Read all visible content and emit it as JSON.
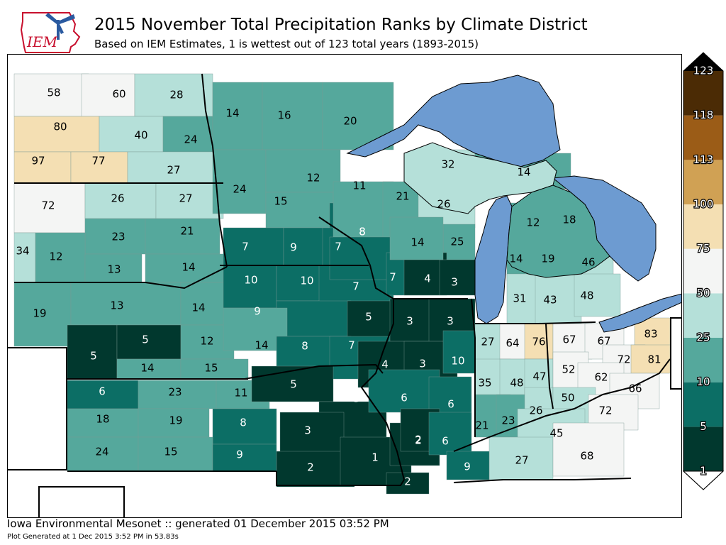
{
  "header": {
    "logo_text": "IEM",
    "title": "2015 November Total Precipitation Ranks by Climate District",
    "subtitle": "Based on IEM Estimates, 1 is wettest out of 123 total years (1893-2015)"
  },
  "footer": {
    "generated": "Iowa Environmental Mesonet :: generated 01 December 2015 03:52 PM",
    "plot_time": "Plot Generated at 1 Dec 2015 3:52 PM in 53.83s"
  },
  "colors": {
    "water": "#6d9bd1",
    "r1_5": "#01382e",
    "r5_10": "#0c6e65",
    "r10_25": "#55a89c",
    "r25_50": "#b5e0d9",
    "r50_75": "#f4f5f4",
    "r75_100": "#f4dfb3",
    "r100_113": "#d0a154",
    "r113_118": "#9b5c17",
    "r118_123": "#4b2b05"
  },
  "colorbar": {
    "levels": [
      "1",
      "5",
      "10",
      "25",
      "50",
      "75",
      "100",
      "113",
      "118",
      "123"
    ]
  },
  "districts": [
    {
      "rank": "58"
    },
    {
      "rank": "60"
    },
    {
      "rank": "28"
    },
    {
      "rank": "80"
    },
    {
      "rank": "40"
    },
    {
      "rank": "24"
    },
    {
      "rank": "97"
    },
    {
      "rank": "77"
    },
    {
      "rank": "27"
    },
    {
      "rank": "72"
    },
    {
      "rank": "26"
    },
    {
      "rank": "27"
    },
    {
      "rank": "23"
    },
    {
      "rank": "21"
    },
    {
      "rank": "34"
    },
    {
      "rank": "12"
    },
    {
      "rank": "13"
    },
    {
      "rank": "14"
    },
    {
      "rank": "19"
    },
    {
      "rank": "13"
    },
    {
      "rank": "14"
    },
    {
      "rank": "5"
    },
    {
      "rank": "5"
    },
    {
      "rank": "12"
    },
    {
      "rank": "14"
    },
    {
      "rank": "15"
    },
    {
      "rank": "6"
    },
    {
      "rank": "23"
    },
    {
      "rank": "11"
    },
    {
      "rank": "18"
    },
    {
      "rank": "19"
    },
    {
      "rank": "8"
    },
    {
      "rank": "24"
    },
    {
      "rank": "15"
    },
    {
      "rank": "9"
    },
    {
      "rank": "14"
    },
    {
      "rank": "16"
    },
    {
      "rank": "20"
    },
    {
      "rank": "24"
    },
    {
      "rank": "12"
    },
    {
      "rank": "15"
    },
    {
      "rank": "8"
    },
    {
      "rank": "7"
    },
    {
      "rank": "9"
    },
    {
      "rank": "7"
    },
    {
      "rank": "10"
    },
    {
      "rank": "10"
    },
    {
      "rank": "7"
    },
    {
      "rank": "9"
    },
    {
      "rank": "5"
    },
    {
      "rank": "14"
    },
    {
      "rank": "8"
    },
    {
      "rank": "7"
    },
    {
      "rank": "5"
    },
    {
      "rank": "3"
    },
    {
      "rank": "3"
    },
    {
      "rank": "2"
    },
    {
      "rank": "1"
    },
    {
      "rank": "2"
    },
    {
      "rank": "2"
    },
    {
      "rank": "11"
    },
    {
      "rank": "21"
    },
    {
      "rank": "8"
    },
    {
      "rank": "32"
    },
    {
      "rank": "26"
    },
    {
      "rank": "14"
    },
    {
      "rank": "25"
    },
    {
      "rank": "7"
    },
    {
      "rank": "4"
    },
    {
      "rank": "3"
    },
    {
      "rank": "14"
    },
    {
      "rank": "12"
    },
    {
      "rank": "18"
    },
    {
      "rank": "14"
    },
    {
      "rank": "19"
    },
    {
      "rank": "46"
    },
    {
      "rank": "31"
    },
    {
      "rank": "43"
    },
    {
      "rank": "48"
    },
    {
      "rank": "3"
    },
    {
      "rank": "3"
    },
    {
      "rank": "4"
    },
    {
      "rank": "3"
    },
    {
      "rank": "10"
    },
    {
      "rank": "6"
    },
    {
      "rank": "6"
    },
    {
      "rank": "2"
    },
    {
      "rank": "6"
    },
    {
      "rank": "27"
    },
    {
      "rank": "64"
    },
    {
      "rank": "76"
    },
    {
      "rank": "35"
    },
    {
      "rank": "48"
    },
    {
      "rank": "47"
    },
    {
      "rank": "21"
    },
    {
      "rank": "23"
    },
    {
      "rank": "26"
    },
    {
      "rank": "67"
    },
    {
      "rank": "67"
    },
    {
      "rank": "83"
    },
    {
      "rank": "52"
    },
    {
      "rank": "72"
    },
    {
      "rank": "81"
    },
    {
      "rank": "62"
    },
    {
      "rank": "66"
    },
    {
      "rank": "50"
    },
    {
      "rank": "72"
    },
    {
      "rank": "45"
    },
    {
      "rank": "27"
    },
    {
      "rank": "68"
    },
    {
      "rank": "9"
    }
  ]
}
